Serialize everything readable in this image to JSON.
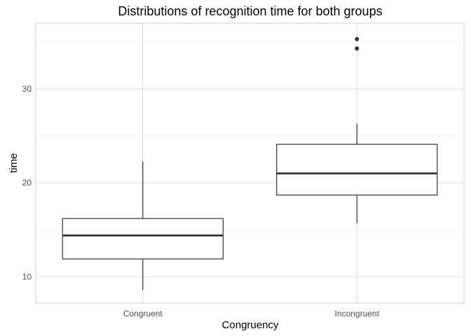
{
  "chart_data": {
    "type": "box",
    "title": "Distributions of recognition time for both groups",
    "xlabel": "Congruency",
    "ylabel": "time",
    "categories": [
      "Congruent",
      "Incongruent"
    ],
    "boxes": [
      {
        "category": "Congruent",
        "min": 8.6,
        "q1": 11.9,
        "median": 14.4,
        "q3": 16.2,
        "max": 22.3,
        "outliers": []
      },
      {
        "category": "Incongruent",
        "min": 15.7,
        "q1": 18.7,
        "median": 21.0,
        "q3": 24.1,
        "max": 26.3,
        "outliers": [
          34.3,
          35.3
        ]
      }
    ],
    "ylim": [
      7.2,
      37.0
    ],
    "yticks": [
      10,
      20,
      30
    ],
    "grid": true,
    "theme": "light",
    "colors": {
      "box_fill": "#ffffff",
      "box_stroke": "#333333",
      "grid_major": "#dedede",
      "grid_minor": "#efefef",
      "panel_border": "#d0d0d0"
    }
  }
}
